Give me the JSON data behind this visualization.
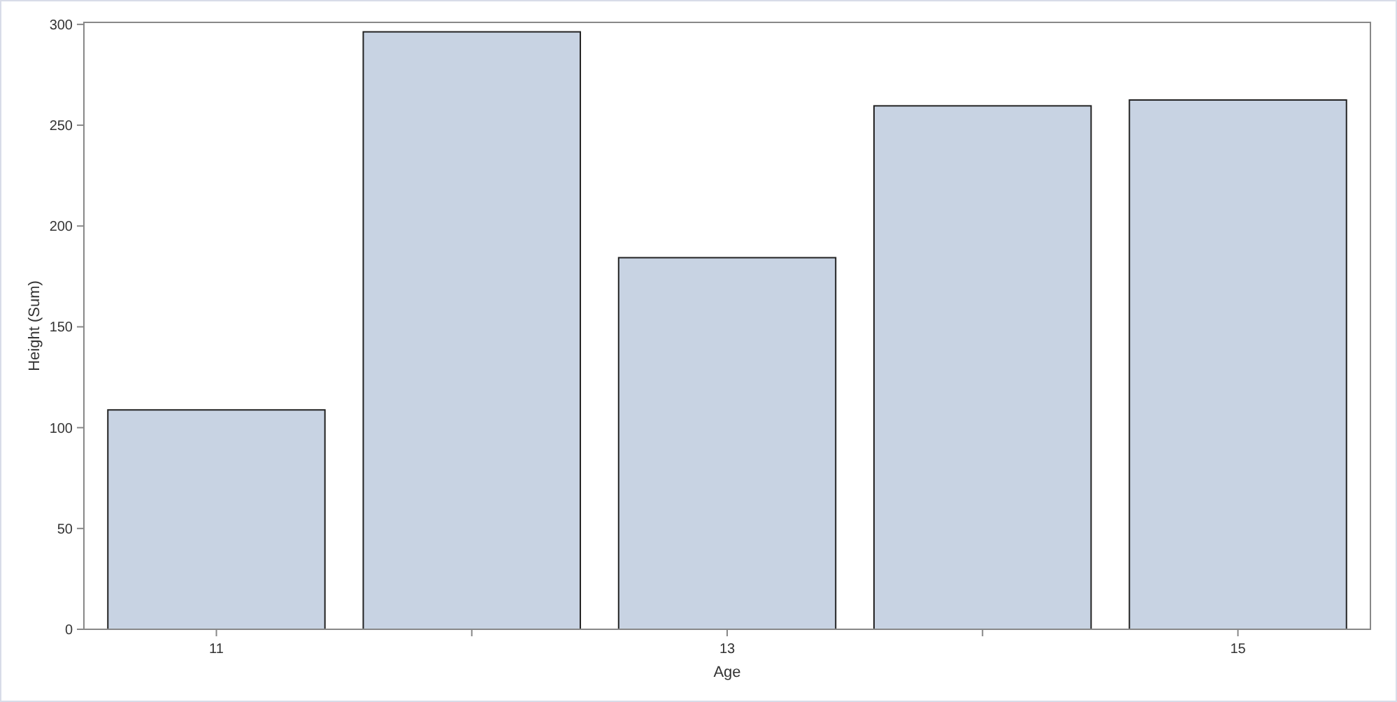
{
  "chart_data": {
    "type": "bar",
    "xlabel": "Age",
    "ylabel": "Height (Sum)",
    "categories": [
      "11",
      null,
      "13",
      null,
      "15"
    ],
    "values": [
      108.8,
      296.3,
      184.3,
      259.6,
      262.5
    ],
    "color": "#c8d3e3",
    "ylim": [
      0,
      301
    ],
    "yticks": [
      0,
      50,
      100,
      150,
      200,
      250,
      300
    ],
    "grid": false
  }
}
